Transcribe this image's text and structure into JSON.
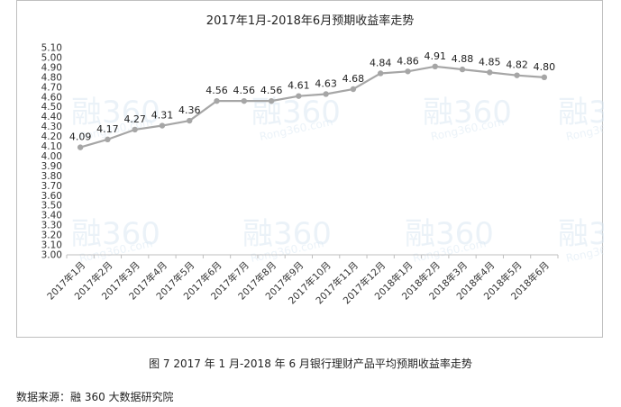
{
  "chart_data": {
    "type": "line",
    "title": "2017年1月-2018年6月预期收益率走势",
    "xlabel": "",
    "ylabel": "",
    "ylim": [
      3.0,
      5.1
    ],
    "ytick_step": 0.1,
    "grid": false,
    "categories": [
      "2017年1月",
      "2017年2月",
      "2017年3月",
      "2017年4月",
      "2017年5月",
      "2017年6月",
      "2017年7月",
      "2017年8月",
      "2017年9月",
      "2017年10月",
      "2017年11月",
      "2017年12月",
      "2018年1月",
      "2018年2月",
      "2018年3月",
      "2018年4月",
      "2018年5月",
      "2018年6月"
    ],
    "series": [
      {
        "values": [
          4.09,
          4.17,
          4.27,
          4.31,
          4.36,
          4.56,
          4.56,
          4.56,
          4.61,
          4.63,
          4.68,
          4.84,
          4.86,
          4.91,
          4.88,
          4.85,
          4.82,
          4.8
        ]
      }
    ],
    "data_labels": [
      "4.09",
      "4.17",
      "4.27",
      "4.31",
      "4.36",
      "4.56",
      "4.56",
      "4.56",
      "4.61",
      "4.63",
      "4.68",
      "4.84",
      "4.86",
      "4.91",
      "4.88",
      "4.85",
      "4.82",
      "4.80"
    ],
    "line_color": "#a6a6a6",
    "marker_color": "#a6a6a6"
  },
  "watermark": {
    "logo": "融360",
    "url": "Rong360.com"
  },
  "caption": "图 7   2017 年 1 月-2018 年 6 月银行理财产品平均预期收益率走势",
  "source": "数据来源：融 360 大数据研究院"
}
